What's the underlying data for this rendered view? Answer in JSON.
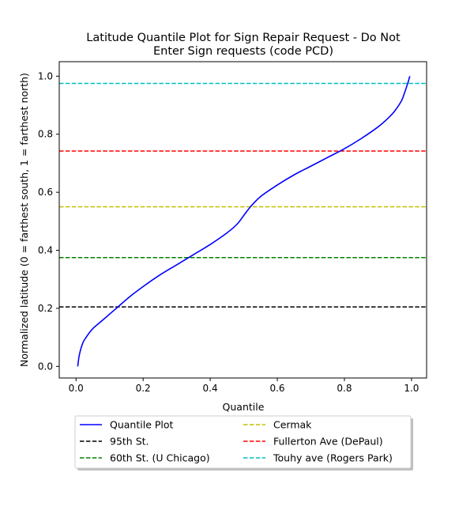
{
  "chart_data": {
    "type": "line",
    "title_line1": "Latitude Quantile Plot for Sign Repair Request - Do Not",
    "title_line2": "Enter Sign  requests (code PCD)",
    "xlabel": "Quantile",
    "ylabel": "Normalized latitude (0 = farthest south, 1 = farthest north)",
    "xlim": [
      -0.05,
      1.045
    ],
    "ylim": [
      -0.04,
      1.05
    ],
    "xticks": [
      0.0,
      0.2,
      0.4,
      0.6,
      0.8,
      1.0
    ],
    "yticks": [
      0.0,
      0.2,
      0.4,
      0.6,
      0.8,
      1.0
    ],
    "tick_labels": [
      "0.0",
      "0.2",
      "0.4",
      "0.6",
      "0.8",
      "1.0"
    ],
    "grid": false,
    "legend_placement": "below-center",
    "series": [
      {
        "name": "Quantile Plot",
        "color": "#0000ff",
        "style": "solid",
        "x": [
          0.005,
          0.01,
          0.02,
          0.03,
          0.05,
          0.08,
          0.12,
          0.16,
          0.2,
          0.25,
          0.3,
          0.35,
          0.4,
          0.45,
          0.48,
          0.5,
          0.52,
          0.55,
          0.6,
          0.65,
          0.7,
          0.75,
          0.8,
          0.85,
          0.9,
          0.93,
          0.95,
          0.97,
          0.98,
          0.99,
          0.995
        ],
        "y": [
          0.0,
          0.04,
          0.08,
          0.1,
          0.13,
          0.16,
          0.2,
          0.24,
          0.275,
          0.315,
          0.35,
          0.385,
          0.42,
          0.46,
          0.49,
          0.52,
          0.55,
          0.585,
          0.625,
          0.66,
          0.69,
          0.72,
          0.75,
          0.785,
          0.825,
          0.855,
          0.88,
          0.915,
          0.945,
          0.98,
          1.0
        ]
      }
    ],
    "reference_lines": [
      {
        "name": "95th St.",
        "y": 0.205,
        "color": "#000000"
      },
      {
        "name": "60th St. (U Chicago)",
        "y": 0.375,
        "color": "#008000"
      },
      {
        "name": "Cermak",
        "y": 0.55,
        "color": "#bfbf00"
      },
      {
        "name": "Fullerton Ave (DePaul)",
        "y": 0.742,
        "color": "#ff0000"
      },
      {
        "name": "Touhy ave (Rogers Park)",
        "y": 0.975,
        "color": "#00bfbf"
      }
    ]
  }
}
